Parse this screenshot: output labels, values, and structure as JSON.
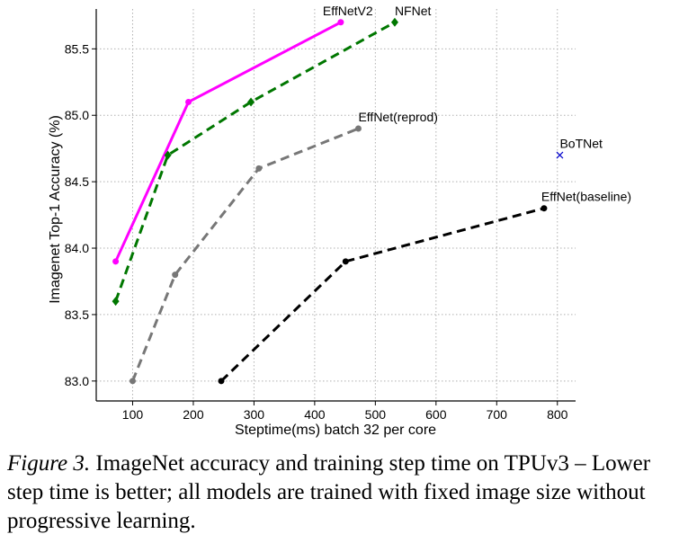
{
  "chart_data": {
    "type": "line",
    "title": "",
    "xlabel": "Steptime(ms) batch 32 per core",
    "ylabel": "Imagenet Top-1 Accuracy (%)",
    "xlim": [
      40,
      830
    ],
    "ylim": [
      82.85,
      85.8
    ],
    "xticks": [
      100,
      200,
      300,
      400,
      500,
      600,
      700,
      800
    ],
    "yticks": [
      83.0,
      83.5,
      84.0,
      84.5,
      85.0,
      85.5
    ],
    "ytick_labels": [
      "83.0",
      "83.5",
      "84.0",
      "84.5",
      "85.0",
      "85.5"
    ],
    "grid": true,
    "legend": "none",
    "series": [
      {
        "name": "EffNetV2",
        "color": "#ff00ff",
        "linestyle": "solid",
        "marker": "circle",
        "x": [
          72,
          192,
          443
        ],
        "y": [
          83.9,
          85.1,
          85.7
        ]
      },
      {
        "name": "NFNet",
        "color": "#007700",
        "linestyle": "dashed",
        "marker": "diamond",
        "x": [
          72,
          158,
          295,
          532
        ],
        "y": [
          83.6,
          84.7,
          85.1,
          85.7
        ]
      },
      {
        "name": "EffNet(reprod)",
        "color": "#777777",
        "linestyle": "dashed",
        "marker": "circle",
        "x": [
          100,
          170,
          308,
          472
        ],
        "y": [
          83.0,
          83.8,
          84.6,
          84.9
        ]
      },
      {
        "name": "EffNet(baseline)",
        "color": "#000000",
        "linestyle": "dashed",
        "marker": "circle",
        "x": [
          246,
          451,
          778
        ],
        "y": [
          83.0,
          83.9,
          84.3
        ]
      },
      {
        "name": "BoTNet",
        "color": "#0000cc",
        "linestyle": "none",
        "marker": "x",
        "x": [
          804
        ],
        "y": [
          84.7
        ]
      }
    ]
  },
  "caption": {
    "figure_label": "Figure 3.",
    "text": " ImageNet accuracy and training step time on TPUv3 – Lower step time is better; all models are trained with fixed image size without progressive learning."
  }
}
